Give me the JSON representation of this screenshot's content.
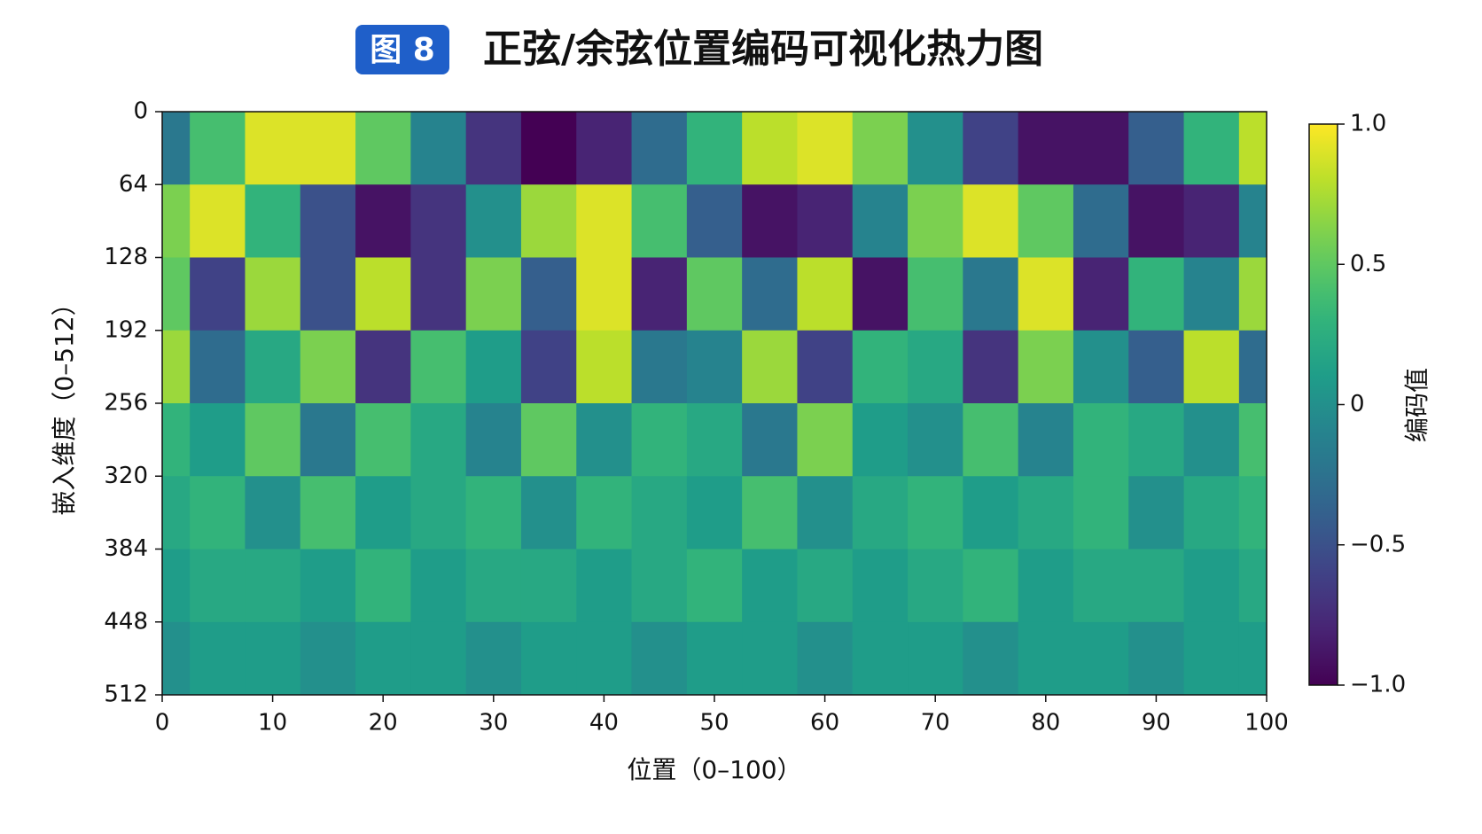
{
  "chart_data": {
    "type": "heatmap",
    "figure_label": "图 8",
    "title": "正弦/余弦位置编码可视化热力图",
    "x_label": "位置（0–100）",
    "y_label": "嵌入维度（0–512）",
    "colorbar_label": "编码值",
    "colormap": "viridis",
    "xlim": [
      0,
      100
    ],
    "xticks": [
      0,
      10,
      20,
      30,
      40,
      50,
      60,
      70,
      80,
      90,
      100
    ],
    "ylim": [
      512,
      0
    ],
    "yticks": [
      0,
      64,
      128,
      192,
      256,
      320,
      384,
      448,
      512
    ],
    "clim": [
      -1,
      1
    ],
    "cticks": [
      {
        "value": 1,
        "label": "1.0"
      },
      0.5,
      0,
      {
        "value": -0.5,
        "label": "−0.5"
      },
      {
        "value": -1,
        "label": "−1.0"
      }
    ],
    "x": [
      0,
      5,
      10,
      15,
      20,
      25,
      30,
      35,
      40,
      45,
      50,
      55,
      60,
      65,
      70,
      75,
      80,
      85,
      90,
      95,
      100
    ],
    "y": [
      32,
      96,
      160,
      224,
      288,
      352,
      416,
      480
    ],
    "z": [
      [
        -0.2,
        0.4,
        0.9,
        0.9,
        0.5,
        -0.1,
        -0.7,
        -1,
        -0.8,
        -0.3,
        0.3,
        0.8,
        0.9,
        0.6,
        0,
        -0.6,
        -0.9,
        -0.9,
        -0.4,
        0.3,
        0.8
      ],
      [
        0.6,
        0.9,
        0.3,
        -0.5,
        -0.9,
        -0.7,
        0,
        0.7,
        0.9,
        0.4,
        -0.4,
        -0.9,
        -0.8,
        -0.1,
        0.6,
        0.9,
        0.5,
        -0.3,
        -0.9,
        -0.8,
        -0.1
      ],
      [
        0.5,
        -0.6,
        0.7,
        -0.5,
        0.8,
        -0.7,
        0.6,
        -0.4,
        0.9,
        -0.8,
        0.5,
        -0.3,
        0.8,
        -0.9,
        0.4,
        -0.2,
        0.9,
        -0.8,
        0.3,
        -0.1,
        0.7
      ],
      [
        0.7,
        -0.3,
        0.2,
        0.6,
        -0.7,
        0.4,
        0.1,
        -0.6,
        0.8,
        -0.2,
        -0.1,
        0.7,
        -0.6,
        0.3,
        0.2,
        -0.7,
        0.6,
        0,
        -0.4,
        0.8,
        -0.3
      ],
      [
        0.3,
        0.1,
        0.5,
        -0.2,
        0.4,
        0.2,
        -0.1,
        0.5,
        0,
        0.3,
        0.2,
        -0.2,
        0.6,
        0.1,
        0,
        0.4,
        -0.1,
        0.3,
        0.2,
        0,
        0.4
      ],
      [
        0.2,
        0.3,
        0,
        0.4,
        0.1,
        0.2,
        0.3,
        0,
        0.3,
        0.2,
        0.1,
        0.4,
        0,
        0.2,
        0.3,
        0.1,
        0.2,
        0.3,
        0,
        0.2,
        0.3
      ],
      [
        0.1,
        0.2,
        0.2,
        0.1,
        0.3,
        0.1,
        0.2,
        0.2,
        0.1,
        0.2,
        0.3,
        0.1,
        0.2,
        0.1,
        0.2,
        0.3,
        0.1,
        0.2,
        0.2,
        0.1,
        0.2
      ],
      [
        0,
        0.1,
        0.1,
        0,
        0.1,
        0.1,
        0,
        0.1,
        0.1,
        0,
        0.1,
        0.1,
        0,
        0.1,
        0.1,
        0,
        0.1,
        0.1,
        0,
        0.1,
        0.1
      ]
    ]
  }
}
